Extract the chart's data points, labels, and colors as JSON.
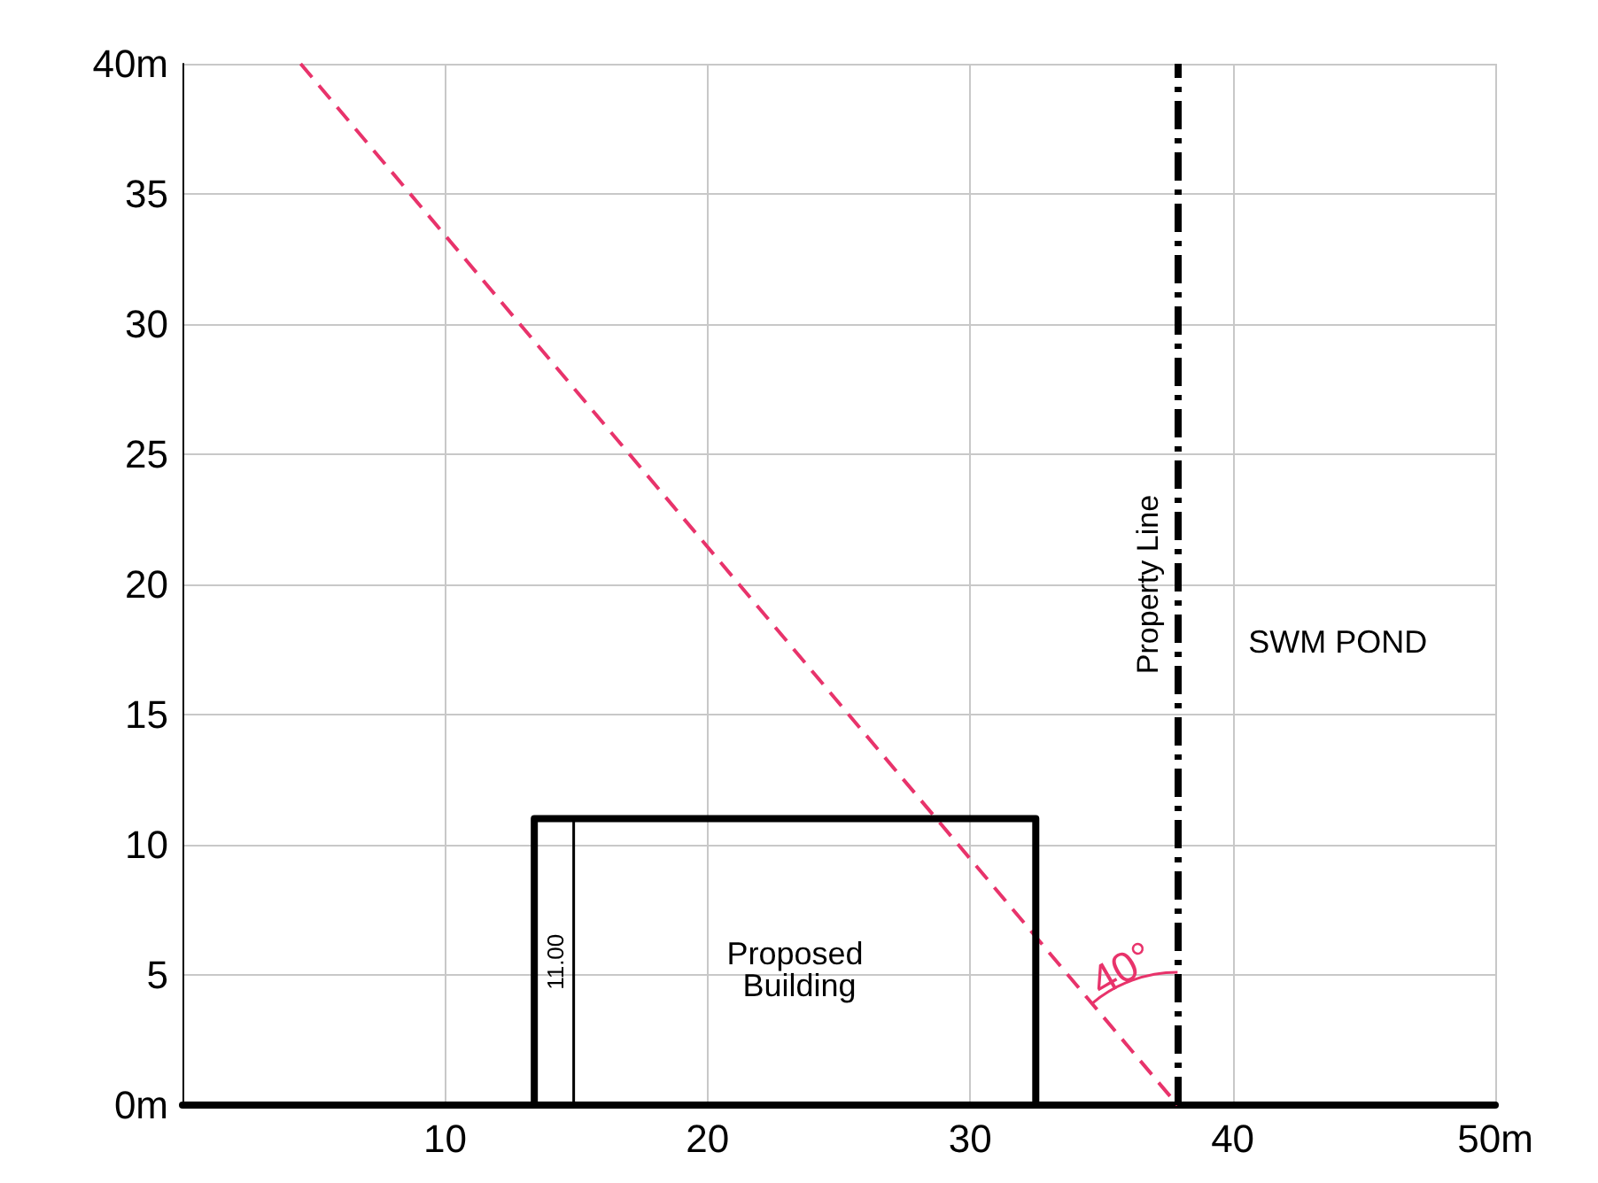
{
  "chart_data": {
    "type": "line",
    "xlim": [
      0,
      50
    ],
    "ylim": [
      0,
      40
    ],
    "xticks": [
      {
        "value": 0,
        "label": null
      },
      10,
      20,
      30,
      40,
      {
        "value": 50,
        "label": "50m"
      }
    ],
    "yticks": [
      {
        "value": 0,
        "label": "0m"
      },
      5,
      10,
      15,
      20,
      25,
      30,
      35,
      {
        "value": 40,
        "label": "40m"
      }
    ],
    "grid": true,
    "marker": "none",
    "series": [
      {
        "color": "#e8336b",
        "line_style": "dashed",
        "x": [
          4.5,
          37.9
        ],
        "values": [
          40,
          0
        ]
      },
      {
        "color": "#000000",
        "line_style": "solid",
        "x": [
          13.4,
          13.4,
          32.5,
          32.5
        ],
        "values": [
          0,
          11,
          11,
          0
        ]
      },
      {
        "color": "#000000",
        "line_style": "solid",
        "x": [
          14.9,
          14.9
        ],
        "values": [
          0,
          11
        ]
      }
    ],
    "ref_lines": [
      {
        "axis": "x",
        "value": 37.9,
        "label": "Property Line",
        "color": "#000000",
        "line_style": "dashed"
      }
    ],
    "annotations": [
      "11.00",
      "Proposed Building",
      "SWM POND",
      "40°"
    ]
  }
}
